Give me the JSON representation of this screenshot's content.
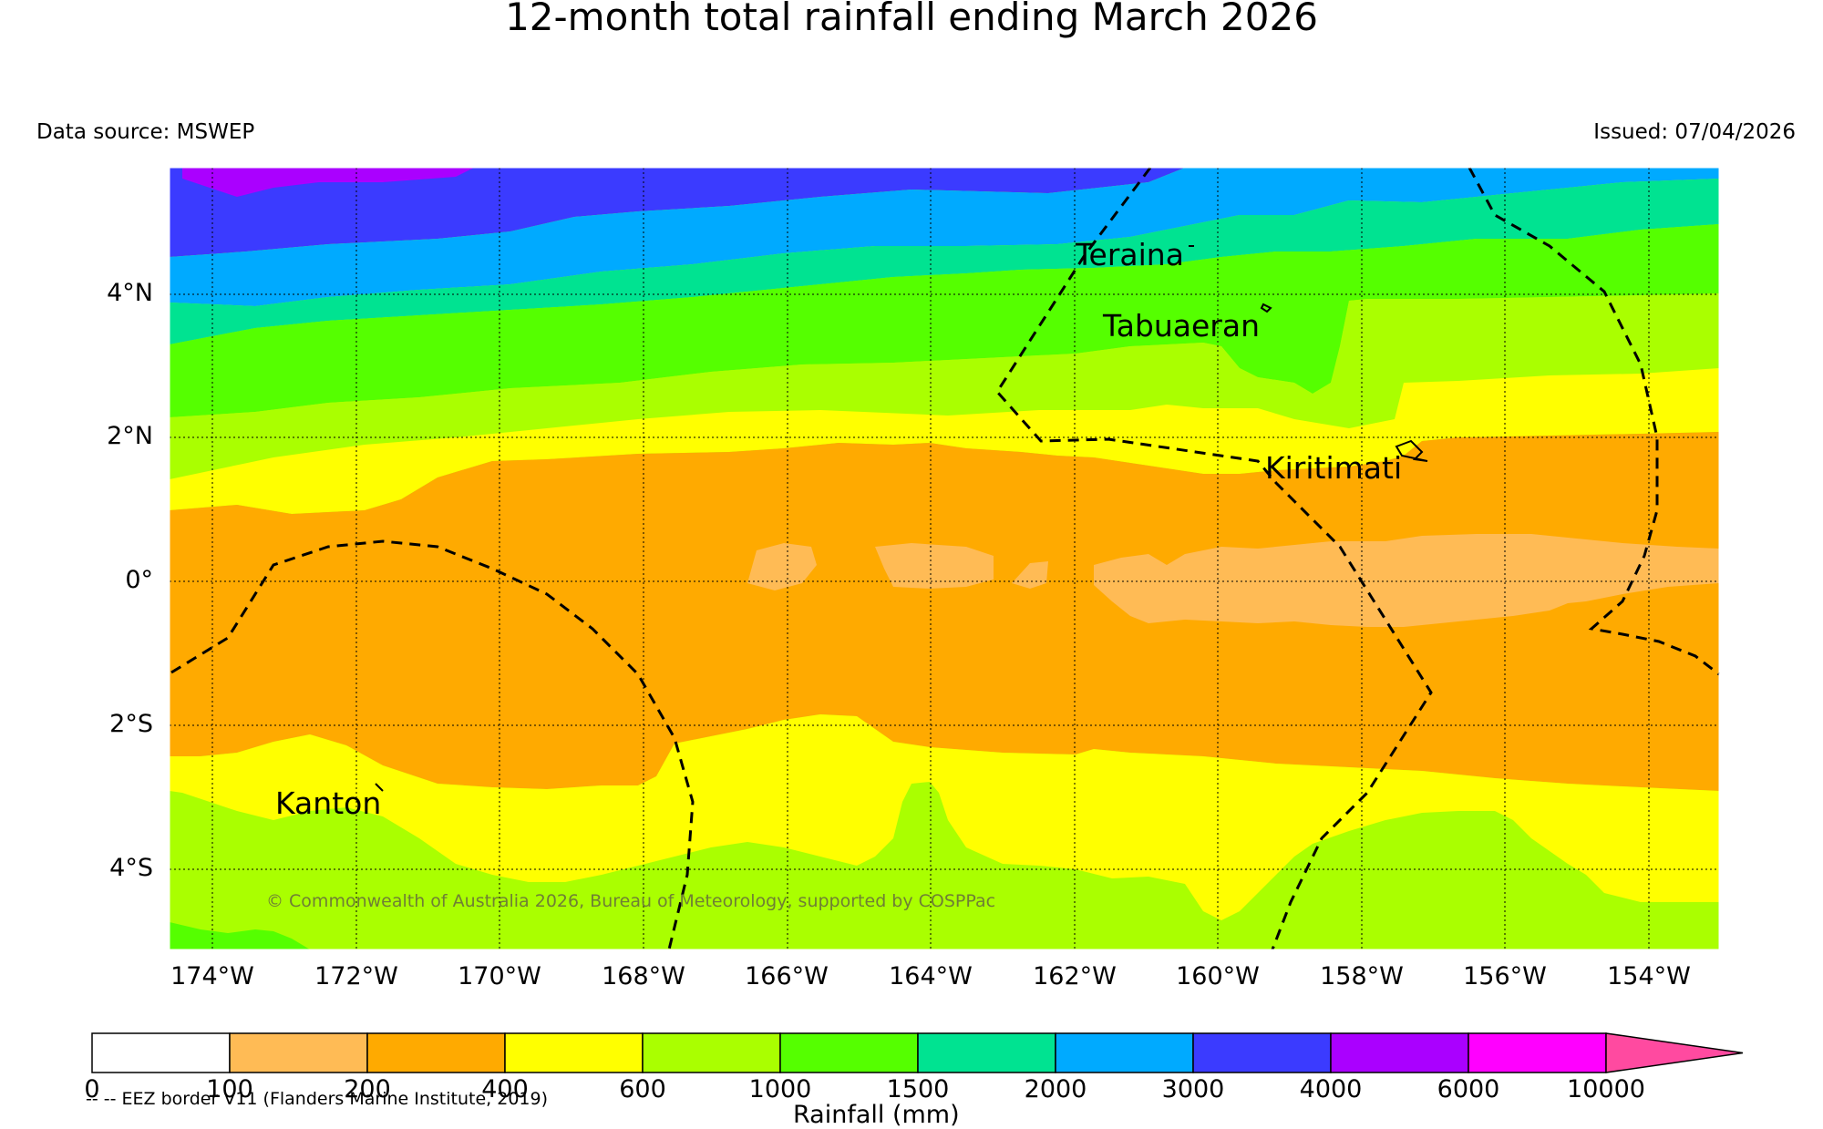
{
  "title": "12-month total rainfall ending March 2026",
  "data_source": "Data source: MSWEP",
  "issued": "Issued: 07/04/2026",
  "lat_labels": [
    "4°N",
    "2°N",
    "0°",
    "2°S",
    "4°S"
  ],
  "lon_labels": [
    "174°W",
    "172°W",
    "170°W",
    "168°W",
    "166°W",
    "164°W",
    "162°W",
    "160°W",
    "158°W",
    "156°W",
    "154°W"
  ],
  "places": {
    "teraina": "Teraina",
    "tabuaeran": "Tabuaeran",
    "kiritimati": "Kiritimati",
    "kanton": "Kanton"
  },
  "copyright": "© Commonwealth of Australia 2026, Bureau of Meteorology, supported by COSPPac",
  "legend_eez": "-- -- EEZ border V11 (Flanders Marine Institute, 2019)",
  "colorbar": {
    "label": "Rainfall (mm)",
    "ticks": [
      "0",
      "100",
      "200",
      "400",
      "600",
      "1000",
      "1500",
      "2000",
      "3000",
      "4000",
      "6000",
      "10000"
    ],
    "colors": [
      "#ffffff",
      "#ffbb55",
      "#ffaa00",
      "#ffff00",
      "#aaff00",
      "#55ff00",
      "#00e391",
      "#00aaff",
      "#3b3bff",
      "#aa00ff",
      "#ff00ff",
      "#ff4aa0"
    ]
  }
}
